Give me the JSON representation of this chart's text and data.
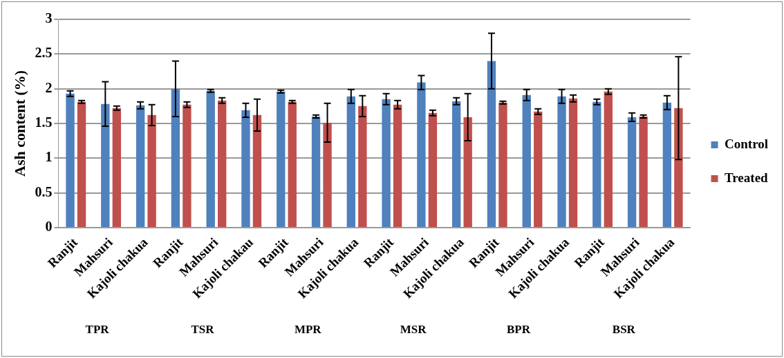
{
  "chart_data": {
    "type": "bar",
    "ylabel": "Ash content (%)",
    "categories": [
      "Ranjit",
      "Mahsuri",
      "Kajoli chakua",
      "Ranjit",
      "Mahsuri",
      "Kajoli chakau",
      "Ranjit",
      "Mahsuri",
      "Kajoli chakua",
      "Ranjit",
      "Mahsuri",
      "Kajoli chakua",
      "Ranjit",
      "Mahsuri",
      "Kajoli chakua",
      "Ranjit",
      "Mahsuri",
      "Kajoli chakua"
    ],
    "series": [
      {
        "name": "Control",
        "color": "#4f81bd",
        "values": [
          1.93,
          1.78,
          1.76,
          2.0,
          1.97,
          1.69,
          1.96,
          1.6,
          1.89,
          1.85,
          2.09,
          1.82,
          2.4,
          1.91,
          1.89,
          1.81,
          1.59,
          1.8
        ],
        "errors": [
          0.04,
          0.32,
          0.05,
          0.4,
          0.02,
          0.1,
          0.02,
          0.02,
          0.1,
          0.08,
          0.1,
          0.05,
          0.4,
          0.08,
          0.1,
          0.04,
          0.06,
          0.1
        ]
      },
      {
        "name": "Treated",
        "color": "#c0504d",
        "values": [
          1.81,
          1.72,
          1.62,
          1.77,
          1.83,
          1.62,
          1.81,
          1.51,
          1.75,
          1.77,
          1.65,
          1.59,
          1.8,
          1.67,
          1.86,
          1.96,
          1.6,
          1.72
        ],
        "errors": [
          0.02,
          0.03,
          0.15,
          0.04,
          0.04,
          0.23,
          0.02,
          0.28,
          0.15,
          0.06,
          0.04,
          0.34,
          0.02,
          0.04,
          0.05,
          0.04,
          0.02,
          0.74
        ]
      }
    ],
    "ylim": [
      0,
      3
    ],
    "yticks": [
      0,
      0.5,
      1,
      1.5,
      2,
      2.5,
      3
    ],
    "grid": "y",
    "legend": "right",
    "annotations": [
      "TPR",
      "TSR",
      "MPR",
      "MSR",
      "BPR",
      "BSR"
    ]
  }
}
